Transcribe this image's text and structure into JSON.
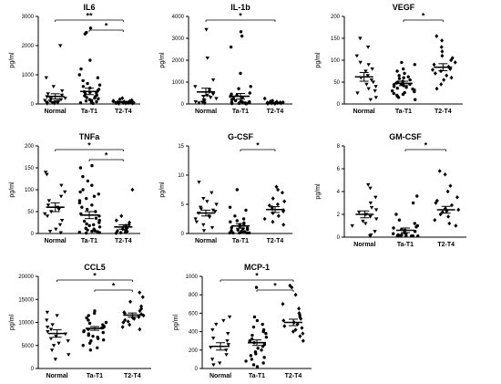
{
  "chart_data": [
    {
      "type": "scatter",
      "title": "IL6",
      "ylabel": "pg/ml",
      "categories": [
        "Normal",
        "Ta-T1",
        "T2-T4"
      ],
      "ylim": [
        0,
        3000
      ],
      "yticks": [
        0,
        1000,
        2000,
        3000
      ],
      "mean": [
        260,
        430,
        70
      ],
      "sem": [
        90,
        110,
        20
      ],
      "points": [
        [
          2000,
          900,
          600,
          450,
          350,
          300,
          250,
          200,
          180,
          150,
          120,
          100,
          90,
          80,
          60,
          50,
          40,
          30,
          20,
          10
        ],
        [
          2600,
          2450,
          2400,
          1500,
          1200,
          1000,
          900,
          800,
          700,
          650,
          600,
          550,
          500,
          450,
          420,
          400,
          380,
          350,
          300,
          280,
          250,
          220,
          200,
          180,
          150,
          120,
          100,
          80,
          60,
          40,
          20
        ],
        [
          200,
          160,
          130,
          110,
          100,
          90,
          80,
          70,
          60,
          55,
          50,
          45,
          40,
          35,
          30,
          25,
          20,
          15
        ]
      ],
      "significance": [
        {
          "from": 0,
          "to": 2,
          "label": "**"
        },
        {
          "from": 1,
          "to": 2,
          "label": "*"
        }
      ]
    },
    {
      "type": "scatter",
      "title": "IL-1b",
      "ylabel": "pg/ml",
      "categories": [
        "Normal",
        "Ta-T1",
        "T2-T4"
      ],
      "ylim": [
        0,
        4000
      ],
      "yticks": [
        0,
        1000,
        2000,
        3000,
        4000
      ],
      "mean": [
        550,
        350,
        60
      ],
      "sem": [
        170,
        130,
        15
      ],
      "points": [
        [
          3400,
          2100,
          1100,
          800,
          650,
          550,
          450,
          400,
          350,
          300,
          250,
          200,
          150,
          120,
          100,
          80,
          50,
          30
        ],
        [
          3300,
          3100,
          2600,
          1400,
          800,
          700,
          500,
          450,
          400,
          350,
          300,
          250,
          200,
          150,
          120,
          100,
          90,
          80,
          70,
          60,
          50,
          40,
          30,
          20,
          15,
          10
        ],
        [
          250,
          150,
          120,
          100,
          80,
          70,
          60,
          50,
          40,
          35,
          30,
          25,
          20,
          15
        ]
      ],
      "significance": [
        {
          "from": 0,
          "to": 2,
          "label": "*"
        }
      ]
    },
    {
      "type": "scatter",
      "title": "VEGF",
      "ylabel": "pg/ml",
      "categories": [
        "Normal",
        "Ta-T1",
        "T2-T4"
      ],
      "ylim": [
        0,
        200
      ],
      "yticks": [
        0,
        50,
        100,
        150,
        200
      ],
      "mean": [
        62,
        47,
        84
      ],
      "sem": [
        10,
        5,
        8
      ],
      "points": [
        [
          150,
          130,
          110,
          95,
          90,
          80,
          75,
          65,
          60,
          55,
          50,
          45,
          40,
          35,
          30,
          25,
          15,
          10
        ],
        [
          95,
          90,
          80,
          75,
          70,
          65,
          62,
          60,
          58,
          55,
          52,
          50,
          48,
          46,
          45,
          44,
          42,
          40,
          38,
          36,
          34,
          32,
          30,
          28,
          26,
          24,
          22,
          20,
          18,
          15,
          10
        ],
        [
          155,
          145,
          130,
          120,
          110,
          105,
          100,
          95,
          90,
          85,
          80,
          78,
          75,
          70,
          65,
          60,
          55,
          45,
          35
        ]
      ],
      "significance": [
        {
          "from": 1,
          "to": 2,
          "label": "*"
        }
      ]
    },
    {
      "type": "scatter",
      "title": "TNFa",
      "ylabel": "pg/ml",
      "categories": [
        "Normal",
        "Ta-T1",
        "T2-T4"
      ],
      "ylim": [
        0,
        200
      ],
      "yticks": [
        0,
        50,
        100,
        150,
        200
      ],
      "mean": [
        60,
        42,
        15
      ],
      "sem": [
        10,
        8,
        5
      ],
      "points": [
        [
          140,
          135,
          110,
          95,
          85,
          75,
          65,
          60,
          55,
          50,
          45,
          40,
          30,
          20,
          10,
          5,
          2
        ],
        [
          155,
          150,
          130,
          120,
          110,
          100,
          95,
          90,
          85,
          80,
          75,
          70,
          65,
          60,
          55,
          50,
          45,
          40,
          35,
          30,
          28,
          25,
          22,
          20,
          18,
          15,
          12,
          10,
          8,
          6,
          5,
          4,
          3,
          2,
          1
        ],
        [
          100,
          40,
          30,
          25,
          20,
          18,
          15,
          12,
          10,
          8,
          6,
          5,
          4,
          3,
          2,
          1
        ]
      ],
      "significance": [
        {
          "from": 0,
          "to": 2,
          "label": "*"
        },
        {
          "from": 1,
          "to": 2,
          "label": "*"
        }
      ]
    },
    {
      "type": "scatter",
      "title": "G-CSF",
      "ylabel": "pg/ml",
      "categories": [
        "Normal",
        "Ta-T1",
        "T2-T4"
      ],
      "ylim": [
        0,
        15
      ],
      "yticks": [
        0,
        5,
        10,
        15
      ],
      "mean": [
        3.5,
        1.3,
        4.1
      ],
      "sem": [
        0.5,
        0.4,
        0.5
      ],
      "points": [
        [
          8.8,
          7.0,
          6.0,
          5.5,
          5.0,
          4.5,
          4.2,
          4.0,
          3.8,
          3.5,
          3.0,
          2.8,
          2.5,
          2.0,
          1.5,
          1.0,
          0.5
        ],
        [
          7.5,
          4.5,
          4.0,
          3.0,
          2.5,
          2.2,
          2.0,
          1.8,
          1.5,
          1.4,
          1.2,
          1.0,
          0.9,
          0.8,
          0.7,
          0.6,
          0.5,
          0.4,
          0.3,
          0.2,
          0.1,
          0.1,
          0.1,
          0.1,
          0.1
        ],
        [
          8.0,
          7.5,
          7.0,
          6.0,
          5.5,
          5.0,
          4.8,
          4.5,
          4.2,
          4.0,
          3.8,
          3.5,
          3.0,
          2.5,
          2.0,
          1.5
        ]
      ],
      "significance": [
        {
          "from": 1,
          "to": 2,
          "label": "*"
        }
      ]
    },
    {
      "type": "scatter",
      "title": "GM-CSF",
      "ylabel": "pg/ml",
      "categories": [
        "Normal",
        "Ta-T1",
        "T2-T4"
      ],
      "ylim": [
        0,
        8
      ],
      "yticks": [
        0,
        2,
        4,
        6,
        8
      ],
      "mean": [
        2.0,
        0.6,
        2.4
      ],
      "sem": [
        0.3,
        0.2,
        0.3
      ],
      "points": [
        [
          4.6,
          4.3,
          3.5,
          3.0,
          2.6,
          2.4,
          2.2,
          2.0,
          1.8,
          1.6,
          1.4,
          1.2,
          1.0,
          0.5,
          0.2,
          0.1
        ],
        [
          3.6,
          3.0,
          2.0,
          1.5,
          1.2,
          1.0,
          0.9,
          0.8,
          0.7,
          0.6,
          0.5,
          0.4,
          0.3,
          0.3,
          0.2,
          0.2,
          0.1,
          0.1,
          0.1,
          0.1,
          0.1,
          0.1,
          0.1,
          0.1
        ],
        [
          5.8,
          5.5,
          4.5,
          4.0,
          3.5,
          3.2,
          3.0,
          2.8,
          2.5,
          2.4,
          2.3,
          2.2,
          2.0,
          1.8,
          1.5,
          1.2,
          1.0
        ]
      ],
      "significance": [
        {
          "from": 1,
          "to": 2,
          "label": "*"
        }
      ]
    },
    {
      "type": "scatter",
      "title": "CCL5",
      "ylabel": "pg/ml",
      "categories": [
        "Normal",
        "Ta-T1",
        "T2-T4"
      ],
      "ylim": [
        0,
        20000
      ],
      "yticks": [
        0,
        5000,
        10000,
        15000,
        20000
      ],
      "mean": [
        7600,
        8700,
        11600
      ],
      "sem": [
        800,
        400,
        450
      ],
      "points": [
        [
          12200,
          11500,
          10500,
          9500,
          9000,
          8500,
          8000,
          7500,
          7000,
          6500,
          6000,
          5500,
          5000,
          4000,
          3000,
          2000
        ],
        [
          12500,
          12000,
          11500,
          11000,
          10500,
          10000,
          9800,
          9500,
          9200,
          9000,
          8800,
          8500,
          8200,
          8000,
          7800,
          7500,
          7200,
          7000,
          6800,
          6500,
          6200,
          6000,
          5500,
          5000,
          4500,
          4000
        ],
        [
          16500,
          15500,
          14500,
          13500,
          13000,
          12500,
          12200,
          12000,
          11800,
          11500,
          11200,
          11000,
          10800,
          10500,
          10200,
          10000,
          9500,
          9000,
          8500
        ]
      ],
      "significance": [
        {
          "from": 0,
          "to": 2,
          "label": "*"
        },
        {
          "from": 1,
          "to": 2,
          "label": "*"
        }
      ]
    },
    {
      "type": "scatter",
      "title": "MCP-1",
      "ylabel": "pg/ml",
      "categories": [
        "Normal",
        "Ta-T1",
        "T2-T4"
      ],
      "ylim": [
        0,
        1000
      ],
      "yticks": [
        0,
        200,
        400,
        600,
        800,
        1000
      ],
      "mean": [
        240,
        280,
        500
      ],
      "sem": [
        40,
        30,
        35
      ],
      "points": [
        [
          560,
          520,
          480,
          420,
          380,
          330,
          300,
          260,
          230,
          200,
          150,
          100,
          60,
          40
        ],
        [
          880,
          560,
          520,
          480,
          450,
          420,
          400,
          380,
          360,
          340,
          320,
          300,
          280,
          260,
          240,
          220,
          200,
          180,
          160,
          140,
          120,
          100,
          80,
          60,
          40,
          20
        ],
        [
          900,
          880,
          800,
          700,
          650,
          600,
          580,
          560,
          540,
          520,
          500,
          480,
          460,
          440,
          420,
          400,
          380,
          350,
          300
        ]
      ],
      "significance": [
        {
          "from": 0,
          "to": 2,
          "label": "*"
        },
        {
          "from": 1,
          "to": 2,
          "label": "*"
        }
      ]
    }
  ]
}
